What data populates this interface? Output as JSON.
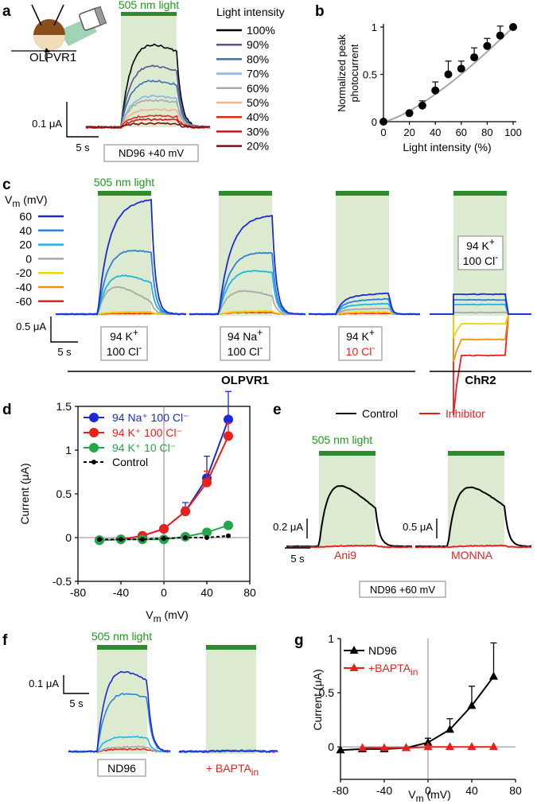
{
  "figure": {
    "colors": {
      "light_fill": "#dcead0",
      "light_bar": "#2e8b2e",
      "green_text": "#1e9a1e",
      "red_text": "#e8211d",
      "box_border": "#9e9e9e",
      "axis_gray": "#888888"
    },
    "panel_a": {
      "label": "a",
      "light_label": "505 nm light",
      "legend_title": "Light intensity",
      "legend": [
        {
          "label": "100%",
          "color": "#000000"
        },
        {
          "label": "90%",
          "color": "#55558f"
        },
        {
          "label": "80%",
          "color": "#3d72b0"
        },
        {
          "label": "70%",
          "color": "#88b8de"
        },
        {
          "label": "60%",
          "color": "#a8a8a8"
        },
        {
          "label": "50%",
          "color": "#f0b48e"
        },
        {
          "label": "40%",
          "color": "#e8211d"
        },
        {
          "label": "30%",
          "color": "#b81f1f"
        },
        {
          "label": "20%",
          "color": "#7a1010"
        }
      ],
      "cell_label": "OLPVR1",
      "scale_y": "0.1 μA",
      "scale_x": "5 s",
      "condition": "ND96  +40 mV"
    },
    "panel_b": {
      "label": "b",
      "chart_data": {
        "type": "scatter",
        "x": [
          0,
          20,
          30,
          40,
          50,
          60,
          70,
          80,
          90,
          100
        ],
        "y": [
          0.0,
          0.09,
          0.17,
          0.33,
          0.5,
          0.56,
          0.68,
          0.8,
          0.91,
          1.0
        ],
        "err": [
          0,
          0.02,
          0.05,
          0.09,
          0.14,
          0.08,
          0.1,
          0.08,
          0.1,
          0
        ],
        "xlabel": "Light intensity (%)",
        "ylabel_line1": "Normalized peak",
        "ylabel_line2": "photocurrent",
        "xticks": [
          "0",
          "20",
          "40",
          "60",
          "80",
          "100"
        ],
        "yticks": [
          "0",
          "0.5",
          "1"
        ],
        "xlim": [
          0,
          100
        ],
        "ylim": [
          0,
          1
        ]
      }
    },
    "panel_c": {
      "label": "c",
      "light_label": "505 nm light",
      "vm_title": "V",
      "vm_sub": "m",
      "vm_unit": " (mV)",
      "voltages": [
        {
          "label": "60",
          "color": "#1c2ad6"
        },
        {
          "label": "40",
          "color": "#2b82dc"
        },
        {
          "label": "20",
          "color": "#22b4e8"
        },
        {
          "label": "0",
          "color": "#a8a8a8"
        },
        {
          "label": "-20",
          "color": "#f2d20e"
        },
        {
          "label": "-40",
          "color": "#f5900e"
        },
        {
          "label": "-60",
          "color": "#e8211d"
        }
      ],
      "scale_y": "0.5 μA",
      "scale_x": "5 s",
      "box1_l1": "94 K",
      "box1_l2": "100 Cl",
      "box2_l1": "94 Na",
      "box2_l2": "100 Cl",
      "box3_l1": "94 K",
      "box3_l2": "10 Cl",
      "box4_l1": "94 K",
      "box4_l2": "100 Cl",
      "sup_plus": "+",
      "sup_minus": "-",
      "group_label": "OLPVR1",
      "chr2_label": "ChR2"
    },
    "panel_d": {
      "label": "d",
      "chart_data": {
        "type": "line",
        "x": [
          -60,
          -40,
          -20,
          0,
          20,
          40,
          60
        ],
        "series": [
          {
            "name": "94 Na⁺ 100 Cl⁻",
            "color": "#1c2ad6",
            "values": [
              -0.03,
              -0.02,
              0.02,
              0.1,
              0.3,
              0.68,
              1.35
            ],
            "err": [
              0,
              0,
              0,
              0,
              0.1,
              0.25,
              0.32
            ]
          },
          {
            "name": "94 K⁺ 100 Cl⁻",
            "color": "#e8211d",
            "values": [
              -0.03,
              -0.02,
              0.02,
              0.1,
              0.3,
              0.63,
              1.16
            ],
            "err": [
              0,
              0,
              0,
              0,
              0.05,
              0.13,
              0.15
            ]
          },
          {
            "name": "94 K⁺ 10 Cl⁻",
            "color": "#22a64a",
            "values": [
              -0.03,
              -0.02,
              -0.02,
              -0.02,
              0.01,
              0.06,
              0.14
            ],
            "err": [
              0,
              0,
              0,
              0,
              0,
              0,
              0
            ]
          },
          {
            "name": "Control",
            "color": "#000000",
            "values": [
              -0.02,
              -0.02,
              -0.02,
              -0.01,
              0.0,
              0.0,
              0.02
            ],
            "err": [
              0,
              0,
              0,
              0,
              0,
              0,
              0
            ]
          }
        ],
        "xlabel_main": "V",
        "xlabel_sub": "m",
        "xlabel_unit": " (mV)",
        "ylabel": "Current (μA)",
        "xticks": [
          "-80",
          "-40",
          "0",
          "40",
          "80"
        ],
        "yticks": [
          "-0.5",
          "0",
          "0.5",
          "1",
          "1.5"
        ],
        "xlim": [
          -80,
          80
        ],
        "ylim": [
          -0.5,
          1.5
        ]
      }
    },
    "panel_e": {
      "label": "e",
      "legend_control": "Control",
      "legend_inhibitor": "Inhibitor",
      "light_label": "505 nm light",
      "scale1": "0.2 μA",
      "scale2": "0.5 μA",
      "scale_x": "5 s",
      "inhibitor1": "Ani9",
      "inhibitor2": "MONNA",
      "condition": "ND96 +60 mV"
    },
    "panel_f": {
      "label": "f",
      "light_label": "505 nm light",
      "scale_y": "0.1 μA",
      "scale_x": "5 s",
      "cond1": "ND96",
      "cond2_main": "+ BAPTA",
      "cond2_sub": "in"
    },
    "panel_g": {
      "label": "g",
      "chart_data": {
        "type": "line",
        "x": [
          -80,
          -60,
          -40,
          -20,
          0,
          20,
          40,
          60
        ],
        "series": [
          {
            "name": "ND96",
            "color": "#000000",
            "values": [
              -0.03,
              -0.02,
              -0.02,
              -0.01,
              0.04,
              0.16,
              0.38,
              0.65
            ],
            "err": [
              0,
              0,
              0,
              0,
              0.04,
              0.1,
              0.18,
              0.31
            ]
          },
          {
            "name_main": "+BAPTA",
            "name_sub": "in",
            "color": "#e8211d",
            "values": [
              null,
              -0.01,
              -0.01,
              -0.01,
              0.0,
              0.0,
              0.0,
              0.0
            ],
            "err": [
              0,
              0,
              0,
              0,
              0,
              0,
              0,
              0
            ]
          }
        ],
        "xlabel_main": "V",
        "xlabel_sub": "m",
        "xlabel_unit": " (mV)",
        "ylabel": "Current (μA)",
        "xticks": [
          "-80",
          "-40",
          "0",
          "40",
          "80"
        ],
        "yticks": [
          "0",
          "0.5",
          "1"
        ],
        "xlim": [
          -80,
          80
        ],
        "ylim": [
          -0.3,
          1.0
        ]
      }
    }
  }
}
